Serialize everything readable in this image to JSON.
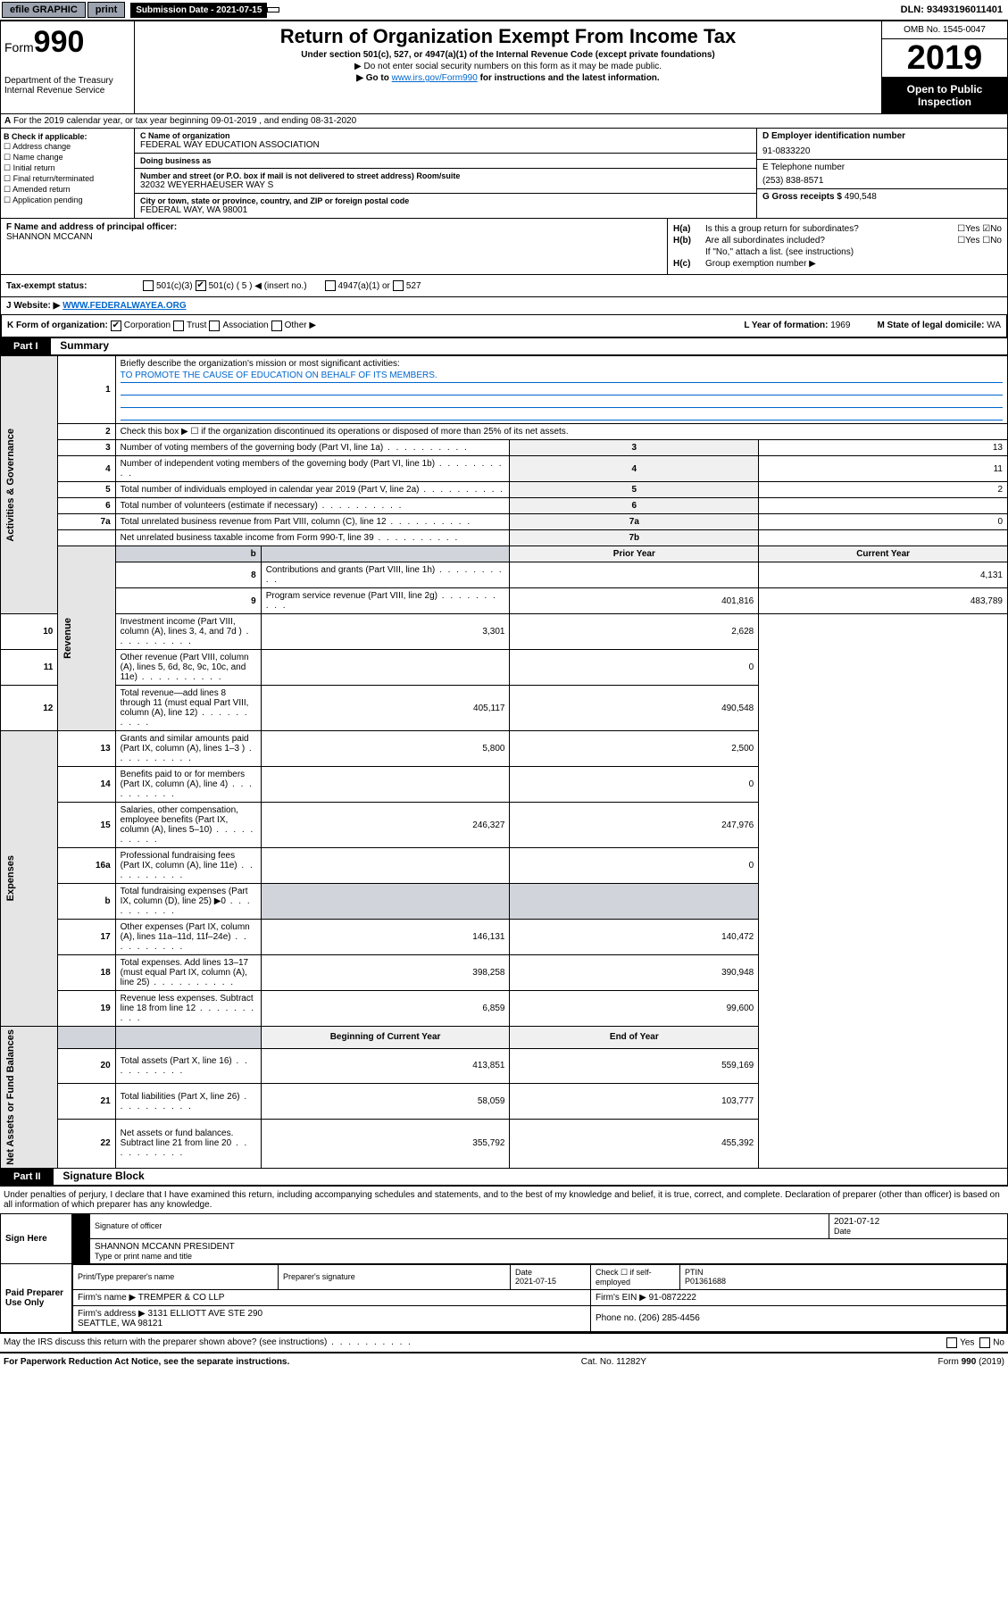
{
  "top": {
    "efile": "efile GRAPHIC",
    "print": "print",
    "sub_lbl": "Submission Date - 2021-07-15",
    "dln": "DLN: 93493196011401"
  },
  "hdr": {
    "form": "Form",
    "num": "990",
    "dept": "Department of the Treasury\nInternal Revenue Service",
    "title": "Return of Organization Exempt From Income Tax",
    "sub": "Under section 501(c), 527, or 4947(a)(1) of the Internal Revenue Code (except private foundations)",
    "note1": "▶ Do not enter social security numbers on this form as it may be made public.",
    "note2_a": "▶ Go to ",
    "note2_link": "www.irs.gov/Form990",
    "note2_b": " for instructions and the latest information.",
    "omb": "OMB No. 1545-0047",
    "year": "2019",
    "open": "Open to Public Inspection"
  },
  "a": {
    "text": "For the 2019 calendar year, or tax year beginning 09-01-2019    , and ending 08-31-2020"
  },
  "b": {
    "hdr": "B Check if applicable:",
    "opts": [
      "Address change",
      "Name change",
      "Initial return",
      "Final return/terminated",
      "Amended return",
      "Application pending"
    ]
  },
  "c": {
    "name_lbl": "C Name of organization",
    "name": "FEDERAL WAY EDUCATION ASSOCIATION",
    "dba_lbl": "Doing business as",
    "dba": "",
    "addr_lbl": "Number and street (or P.O. box if mail is not delivered to street address)          Room/suite",
    "addr": "32032 WEYERHAEUSER WAY S",
    "city_lbl": "City or town, state or province, country, and ZIP or foreign postal code",
    "city": "FEDERAL WAY, WA  98001"
  },
  "d": {
    "lbl": "D Employer identification number",
    "val": "91-0833220"
  },
  "e": {
    "lbl": "E Telephone number",
    "val": "(253) 838-8571"
  },
  "g": {
    "lbl": "G Gross receipts $",
    "val": "490,548"
  },
  "f": {
    "lbl": "F  Name and address of principal officer:",
    "val": "SHANNON MCCANN"
  },
  "h": {
    "a": "Is this a group return for subordinates?",
    "a_ans": "No",
    "b": "Are all subordinates included?",
    "b_note": "If \"No,\" attach a list. (see instructions)",
    "c": "Group exemption number ▶"
  },
  "i": {
    "lbl": "Tax-exempt status:",
    "c5": "501(c) ( 5 ) ◀ (insert no.)"
  },
  "j": {
    "lbl": "Website: ▶",
    "val": "WWW.FEDERALWAYEA.ORG"
  },
  "k": {
    "lbl": "K Form of organization:",
    "corp": "Corporation",
    "trust": "Trust",
    "assoc": "Association",
    "other": "Other ▶"
  },
  "l": {
    "lbl": "L Year of formation:",
    "val": "1969"
  },
  "m": {
    "lbl": "M State of legal domicile:",
    "val": "WA"
  },
  "p1": {
    "hdr": "Part I",
    "title": "Summary",
    "l1": "Briefly describe the organization's mission or most significant activities:",
    "mission": "TO PROMOTE THE CAUSE OF EDUCATION ON BEHALF OF ITS MEMBERS.",
    "l2": "Check this box ▶ ☐  if the organization discontinued its operations or disposed of more than 25% of its net assets.",
    "rows_small": [
      {
        "n": "3",
        "d": "Number of voting members of the governing body (Part VI, line 1a)",
        "b": "3",
        "v": "13"
      },
      {
        "n": "4",
        "d": "Number of independent voting members of the governing body (Part VI, line 1b)",
        "b": "4",
        "v": "11"
      },
      {
        "n": "5",
        "d": "Total number of individuals employed in calendar year 2019 (Part V, line 2a)",
        "b": "5",
        "v": "2"
      },
      {
        "n": "6",
        "d": "Total number of volunteers (estimate if necessary)",
        "b": "6",
        "v": ""
      },
      {
        "n": "7a",
        "d": "Total unrelated business revenue from Part VIII, column (C), line 12",
        "b": "7a",
        "v": "0"
      },
      {
        "n": "",
        "d": "Net unrelated business taxable income from Form 990-T, line 39",
        "b": "7b",
        "v": ""
      }
    ],
    "col_prior": "Prior Year",
    "col_curr": "Current Year",
    "rev": [
      {
        "n": "8",
        "d": "Contributions and grants (Part VIII, line 1h)",
        "p": "",
        "c": "4,131"
      },
      {
        "n": "9",
        "d": "Program service revenue (Part VIII, line 2g)",
        "p": "401,816",
        "c": "483,789"
      },
      {
        "n": "10",
        "d": "Investment income (Part VIII, column (A), lines 3, 4, and 7d )",
        "p": "3,301",
        "c": "2,628"
      },
      {
        "n": "11",
        "d": "Other revenue (Part VIII, column (A), lines 5, 6d, 8c, 9c, 10c, and 11e)",
        "p": "",
        "c": "0"
      },
      {
        "n": "12",
        "d": "Total revenue—add lines 8 through 11 (must equal Part VIII, column (A), line 12)",
        "p": "405,117",
        "c": "490,548"
      }
    ],
    "exp": [
      {
        "n": "13",
        "d": "Grants and similar amounts paid (Part IX, column (A), lines 1–3 )",
        "p": "5,800",
        "c": "2,500"
      },
      {
        "n": "14",
        "d": "Benefits paid to or for members (Part IX, column (A), line 4)",
        "p": "",
        "c": "0"
      },
      {
        "n": "15",
        "d": "Salaries, other compensation, employee benefits (Part IX, column (A), lines 5–10)",
        "p": "246,327",
        "c": "247,976"
      },
      {
        "n": "16a",
        "d": "Professional fundraising fees (Part IX, column (A), line 11e)",
        "p": "",
        "c": "0"
      },
      {
        "n": "b",
        "d": "Total fundraising expenses (Part IX, column (D), line 25) ▶0",
        "p": "grey",
        "c": "grey"
      },
      {
        "n": "17",
        "d": "Other expenses (Part IX, column (A), lines 11a–11d, 11f–24e)",
        "p": "146,131",
        "c": "140,472"
      },
      {
        "n": "18",
        "d": "Total expenses. Add lines 13–17 (must equal Part IX, column (A), line 25)",
        "p": "398,258",
        "c": "390,948"
      },
      {
        "n": "19",
        "d": "Revenue less expenses. Subtract line 18 from line 12",
        "p": "6,859",
        "c": "99,600"
      }
    ],
    "col_beg": "Beginning of Current Year",
    "col_end": "End of Year",
    "net": [
      {
        "n": "20",
        "d": "Total assets (Part X, line 16)",
        "p": "413,851",
        "c": "559,169"
      },
      {
        "n": "21",
        "d": "Total liabilities (Part X, line 26)",
        "p": "58,059",
        "c": "103,777"
      },
      {
        "n": "22",
        "d": "Net assets or fund balances. Subtract line 21 from line 20",
        "p": "355,792",
        "c": "455,392"
      }
    ],
    "vtab1": "Activities & Governance",
    "vtab2": "Revenue",
    "vtab3": "Expenses",
    "vtab4": "Net Assets or Fund Balances"
  },
  "p2": {
    "hdr": "Part II",
    "title": "Signature Block",
    "perjury": "Under penalties of perjury, I declare that I have examined this return, including accompanying schedules and statements, and to the best of my knowledge and belief, it is true, correct, and complete. Declaration of preparer (other than officer) is based on all information of which preparer has any knowledge.",
    "sign_here": "Sign Here",
    "sig_date": "2021-07-12",
    "sig_off": "Signature of officer",
    "sig_date_lbl": "Date",
    "name_title": "SHANNON MCCANN  PRESIDENT",
    "name_lbl": "Type or print name and title",
    "paid": "Paid Preparer Use Only",
    "pp_name_lbl": "Print/Type preparer's name",
    "pp_sig_lbl": "Preparer's signature",
    "pp_date_lbl": "Date",
    "pp_date": "2021-07-15",
    "pp_check": "Check ☐ if self-employed",
    "ptin_lbl": "PTIN",
    "ptin": "P01361688",
    "firm_lbl": "Firm's name     ▶",
    "firm": "TREMPER & CO LLP",
    "ein_lbl": "Firm's EIN ▶",
    "ein": "91-0872222",
    "faddr_lbl": "Firm's address ▶",
    "faddr": "3131 ELLIOTT AVE STE 290\nSEATTLE, WA  98121",
    "phone_lbl": "Phone no.",
    "phone": "(206) 285-4456",
    "discuss": "May the IRS discuss this return with the preparer shown above? (see instructions)"
  },
  "foot": {
    "l": "For Paperwork Reduction Act Notice, see the separate instructions.",
    "c": "Cat. No. 11282Y",
    "r": "Form 990 (2019)"
  }
}
